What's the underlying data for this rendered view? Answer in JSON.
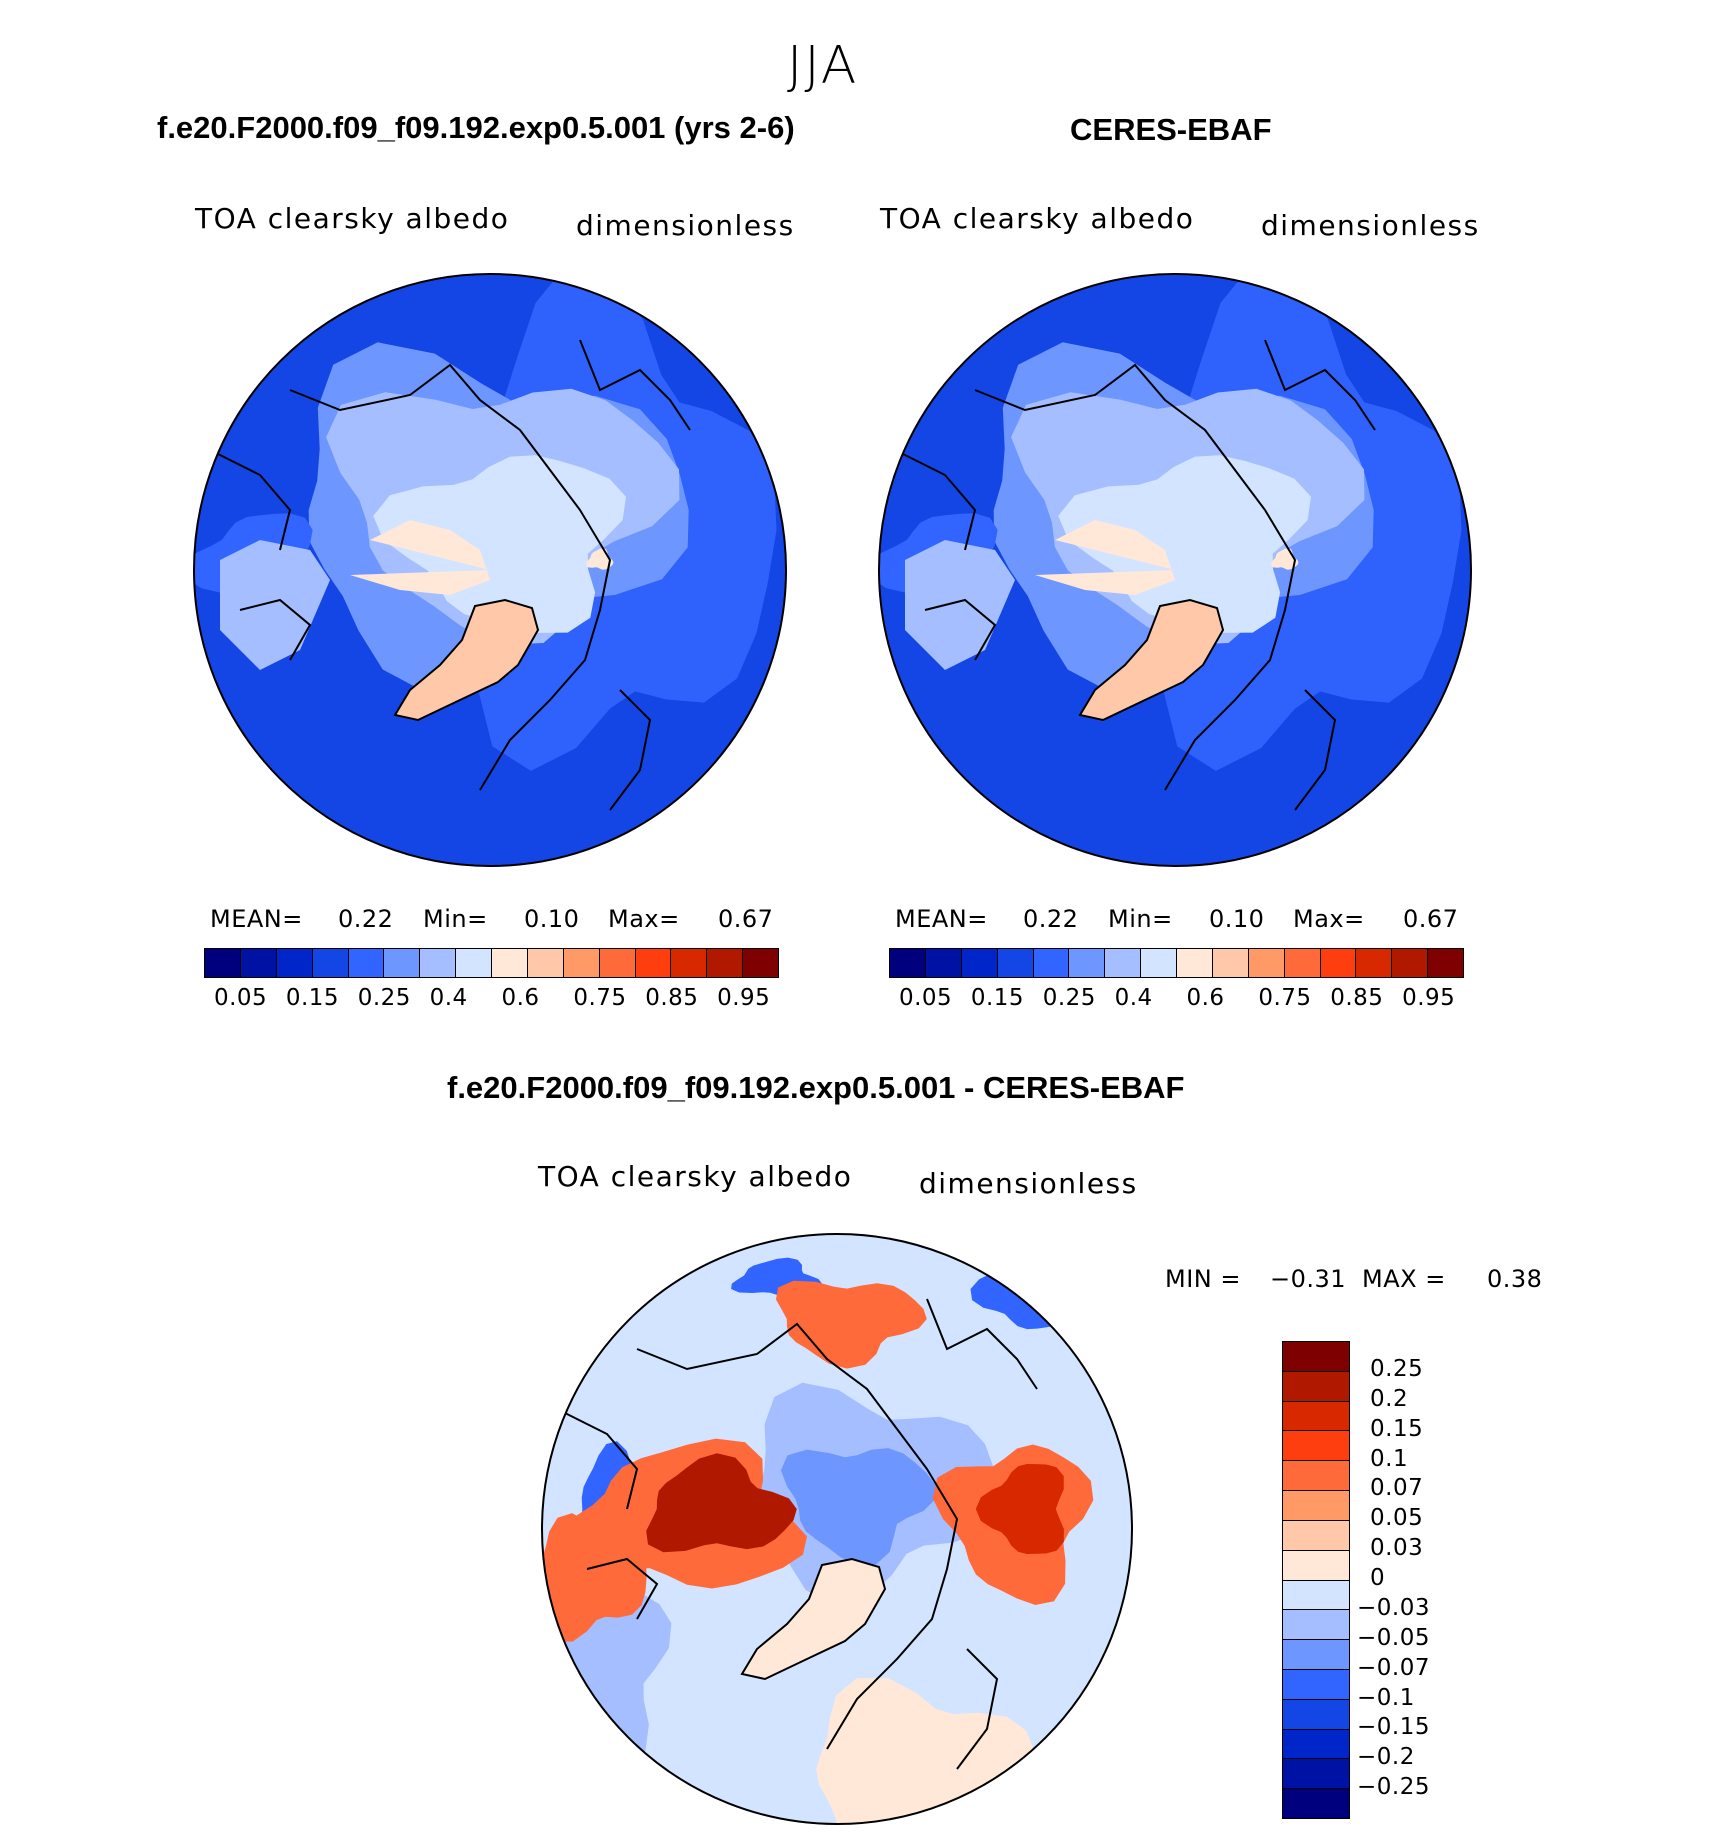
{
  "season": "JJA",
  "panels": [
    {
      "title": "f.e20.F2000.f09_f09.192.exp0.5.001 (yrs 2-6)",
      "variable": "TOA clearsky albedo",
      "units": "dimensionless",
      "mean_label": "MEAN=",
      "mean": "0.22",
      "min_label": "Min=",
      "min": "0.10",
      "max_label": "Max=",
      "max": "0.67"
    },
    {
      "title": "CERES-EBAF",
      "variable": "TOA clearsky albedo",
      "units": "dimensionless",
      "mean_label": "MEAN=",
      "mean": "0.22",
      "min_label": "Min=",
      "min": "0.10",
      "max_label": "Max=",
      "max": "0.67"
    }
  ],
  "diff": {
    "title": "f.e20.F2000.f09_f09.192.exp0.5.001 - CERES-EBAF",
    "variable": "TOA clearsky albedo",
    "units": "dimensionless",
    "min_label": "MIN =",
    "min": "−0.31",
    "max_label": "MAX =",
    "max": "0.38"
  },
  "chart_data": [
    {
      "type": "heatmap",
      "projection": "north polar stereographic",
      "title": "f.e20.F2000.f09_f09.192.exp0.5.001 (yrs 2-6)",
      "field": "TOA clearsky albedo",
      "stats": {
        "mean": 0.22,
        "min": 0.1,
        "max": 0.67
      },
      "colorbar": {
        "tick_labels": [
          "0.05",
          "0.15",
          "0.25",
          "0.4",
          "0.6",
          "0.75",
          "0.85",
          "0.95"
        ],
        "colors": [
          "#00007f",
          "#0012a4",
          "#0026c9",
          "#1446e6",
          "#3264ff",
          "#6e96ff",
          "#a5beff",
          "#d2e4ff",
          "#ffe8d8",
          "#ffc8a8",
          "#ff9966",
          "#ff6a3a",
          "#ff3e10",
          "#d82800",
          "#b01800",
          "#7f0000"
        ]
      }
    },
    {
      "type": "heatmap",
      "projection": "north polar stereographic",
      "title": "CERES-EBAF",
      "field": "TOA clearsky albedo",
      "stats": {
        "mean": 0.22,
        "min": 0.1,
        "max": 0.67
      },
      "colorbar": {
        "tick_labels": [
          "0.05",
          "0.15",
          "0.25",
          "0.4",
          "0.6",
          "0.75",
          "0.85",
          "0.95"
        ],
        "colors": [
          "#00007f",
          "#0012a4",
          "#0026c9",
          "#1446e6",
          "#3264ff",
          "#6e96ff",
          "#a5beff",
          "#d2e4ff",
          "#ffe8d8",
          "#ffc8a8",
          "#ff9966",
          "#ff6a3a",
          "#ff3e10",
          "#d82800",
          "#b01800",
          "#7f0000"
        ]
      }
    },
    {
      "type": "heatmap",
      "projection": "north polar stereographic",
      "title": "f.e20.F2000.f09_f09.192.exp0.5.001 - CERES-EBAF",
      "field": "TOA clearsky albedo",
      "stats": {
        "min": -0.31,
        "max": 0.38
      },
      "colorbar": {
        "tick_labels": [
          "0.25",
          "0.2",
          "0.15",
          "0.1",
          "0.07",
          "0.05",
          "0.03",
          "0",
          "−0.03",
          "−0.05",
          "−0.07",
          "−0.1",
          "−0.15",
          "−0.2",
          "−0.25"
        ],
        "colors": [
          "#7f0000",
          "#b01800",
          "#d82800",
          "#ff3e10",
          "#ff6a3a",
          "#ff9966",
          "#ffc8a8",
          "#ffe8d8",
          "#d2e4ff",
          "#a5beff",
          "#6e96ff",
          "#3264ff",
          "#1446e6",
          "#0026c9",
          "#0012a4",
          "#00007f"
        ]
      }
    }
  ]
}
